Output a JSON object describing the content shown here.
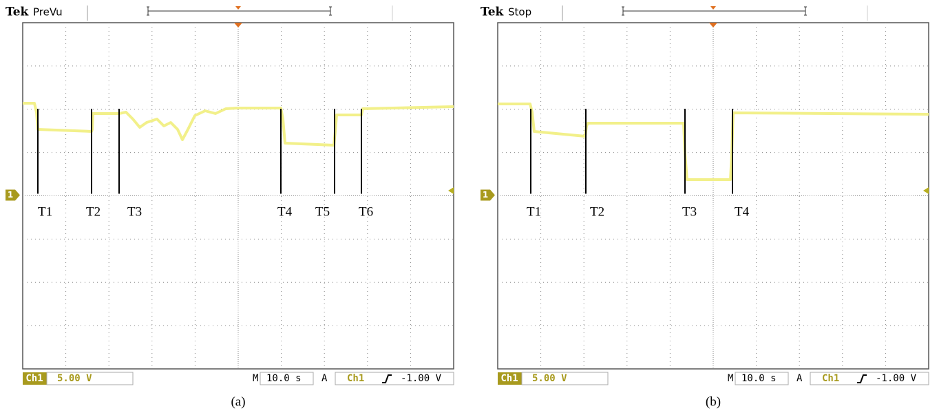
{
  "panels": [
    {
      "header": {
        "brand": "Tek",
        "status": "PreVu"
      },
      "marker": "1",
      "labels": [
        "T1",
        "T2",
        "T3",
        "T4",
        "T5",
        "T6"
      ],
      "footer": {
        "channel": "Ch1",
        "scale": "5.00 V",
        "time_prefix": "M",
        "time": "10.0 s",
        "trigger_prefix": "A",
        "trigger_channel": "Ch1",
        "trigger_level": "-1.00 V"
      },
      "caption": "(a)"
    },
    {
      "header": {
        "brand": "Tek",
        "status": "Stop"
      },
      "marker": "1",
      "labels": [
        "T1",
        "T2",
        "T3",
        "T4"
      ],
      "footer": {
        "channel": "Ch1",
        "scale": "5.00 V",
        "time_prefix": "M",
        "time": "10.0 s",
        "trigger_prefix": "A",
        "trigger_channel": "Ch1",
        "trigger_level": "-1.00 V"
      },
      "caption": "(b)"
    }
  ]
}
